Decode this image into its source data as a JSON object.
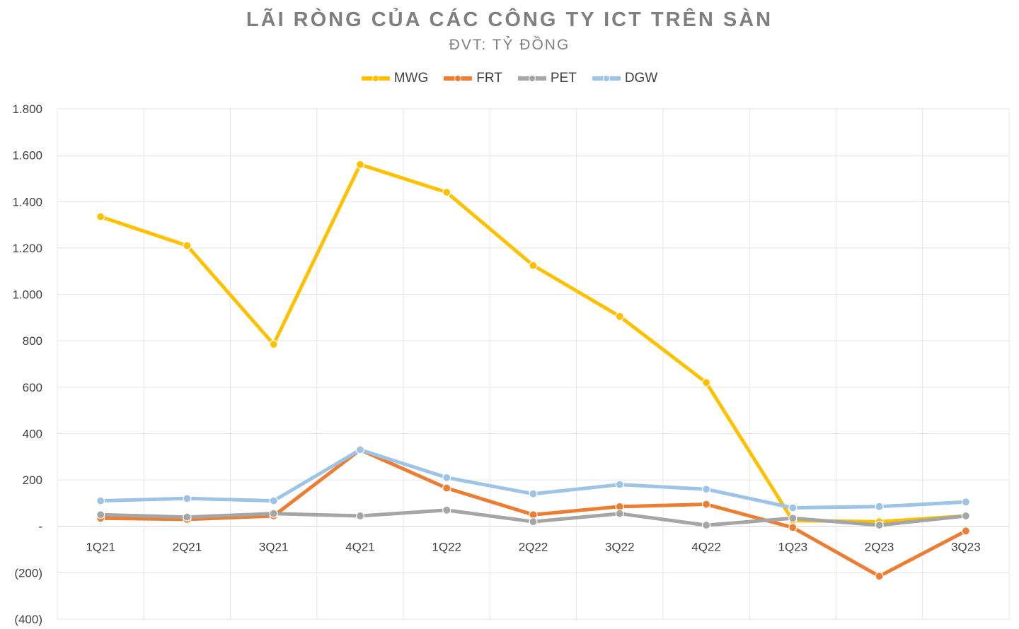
{
  "chart_data": {
    "type": "line",
    "title": "LÃI RÒNG CỦA CÁC CÔNG TY ICT TRÊN SÀN",
    "subtitle": "ĐVT: TỶ ĐỒNG",
    "categories": [
      "1Q21",
      "2Q21",
      "3Q21",
      "4Q21",
      "1Q22",
      "2Q22",
      "3Q22",
      "4Q22",
      "1Q23",
      "2Q23",
      "3Q23"
    ],
    "y_ticks": [
      {
        "value": 1800,
        "label": "1.800"
      },
      {
        "value": 1600,
        "label": "1.600"
      },
      {
        "value": 1400,
        "label": "1.400"
      },
      {
        "value": 1200,
        "label": "1.200"
      },
      {
        "value": 1000,
        "label": "1.000"
      },
      {
        "value": 800,
        "label": "800"
      },
      {
        "value": 600,
        "label": "600"
      },
      {
        "value": 400,
        "label": "400"
      },
      {
        "value": 200,
        "label": "200"
      },
      {
        "value": 0,
        "label": "-"
      },
      {
        "value": -200,
        "label": "(200)"
      },
      {
        "value": -400,
        "label": "(400)"
      }
    ],
    "ylim": [
      -400,
      1800
    ],
    "grid": true,
    "legend_position": "top",
    "series": [
      {
        "name": "MWG",
        "color": "#FFC000",
        "values": [
          1335,
          1210,
          785,
          1560,
          1440,
          1125,
          905,
          620,
          25,
          20,
          45
        ]
      },
      {
        "name": "FRT",
        "color": "#ED7D31",
        "values": [
          35,
          30,
          45,
          330,
          165,
          50,
          85,
          95,
          -5,
          -215,
          -20
        ]
      },
      {
        "name": "PET",
        "color": "#A5A5A5",
        "values": [
          50,
          40,
          55,
          45,
          70,
          20,
          55,
          5,
          35,
          5,
          45
        ]
      },
      {
        "name": "DGW",
        "color": "#9DC3E6",
        "values": [
          110,
          120,
          110,
          330,
          210,
          140,
          180,
          160,
          80,
          85,
          105
        ]
      }
    ]
  }
}
